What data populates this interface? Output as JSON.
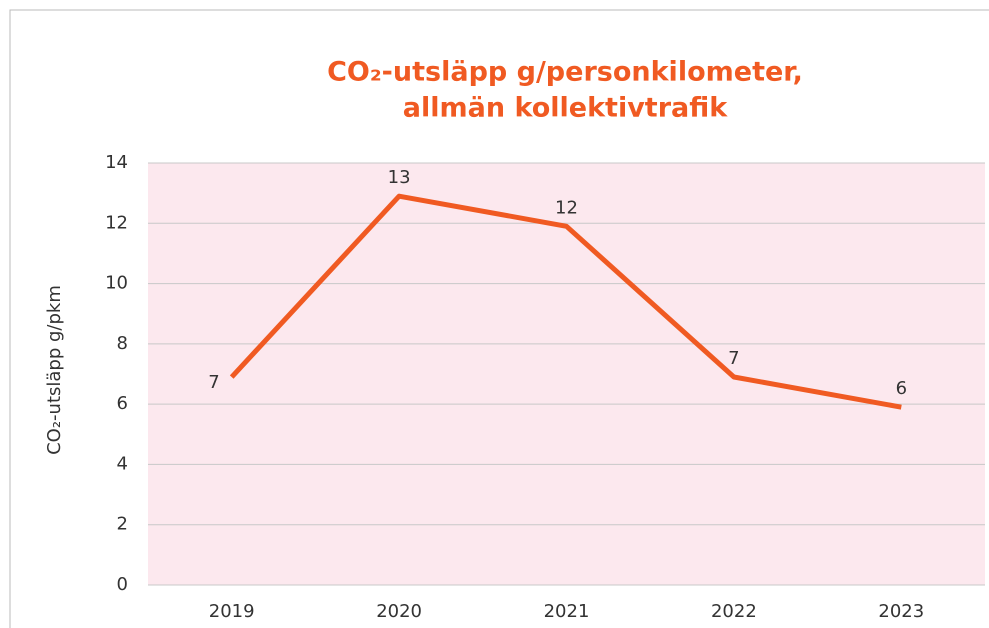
{
  "chart_data": {
    "type": "line",
    "title": [
      "CO₂-utsläpp g/personkilometer,",
      "allmän kollektivtrafik"
    ],
    "y_label": "CO₂-utsläpp g/pkm",
    "categories": [
      "2019",
      "2020",
      "2021",
      "2022",
      "2023"
    ],
    "values": [
      6.9,
      12.9,
      11.9,
      6.9,
      5.9
    ],
    "value_labels": [
      "7",
      "13",
      "12",
      "7",
      "6"
    ],
    "color": "#f05a22",
    "ylim": [
      0,
      14
    ],
    "yticks": [
      0,
      2,
      4,
      6,
      8,
      10,
      12,
      14
    ],
    "grid": true
  }
}
